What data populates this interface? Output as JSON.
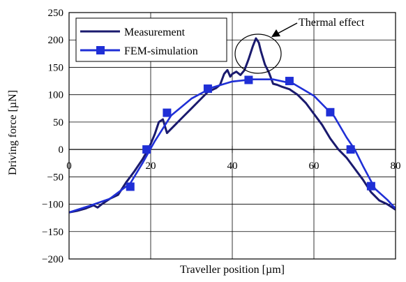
{
  "chart_data": {
    "type": "line",
    "title": "",
    "xlabel": "Traveller position [µm]",
    "ylabel": "Driving force [µN]",
    "xlim": [
      0,
      80
    ],
    "ylim": [
      -200,
      250
    ],
    "xticks": [
      0,
      20,
      40,
      60,
      80
    ],
    "xtick_labels": [
      "0",
      "20",
      "40",
      "60",
      "80"
    ],
    "yticks": [
      250,
      200,
      150,
      100,
      50,
      0,
      -50,
      -100,
      -150,
      -200
    ],
    "ytick_labels": [
      "250",
      "200",
      "150",
      "100",
      "50",
      "0",
      "−50",
      "−100",
      "−150",
      "−200"
    ],
    "grid": true,
    "legend_position": "top-left",
    "series": [
      {
        "name": "Measurement",
        "color": "#1a1a6e",
        "marker": "none",
        "x": [
          0,
          2,
          4,
          6,
          7,
          8,
          9,
          10,
          12,
          14,
          16,
          18,
          19,
          20,
          21,
          22,
          23,
          24,
          26,
          28,
          30,
          32,
          34,
          36,
          37,
          38,
          38.8,
          39.5,
          40,
          41,
          42,
          43,
          44,
          45,
          45.8,
          46.5,
          47,
          48,
          49,
          50,
          51,
          52,
          54,
          56,
          58,
          60,
          62,
          64,
          66,
          68,
          70,
          72,
          74,
          76,
          78,
          80
        ],
        "y": [
          -115,
          -112,
          -108,
          -102,
          -106,
          -100,
          -95,
          -90,
          -83,
          -60,
          -40,
          -18,
          -5,
          10,
          28,
          50,
          55,
          30,
          45,
          60,
          75,
          90,
          105,
          112,
          118,
          138,
          145,
          133,
          138,
          142,
          136,
          145,
          165,
          188,
          203,
          195,
          180,
          155,
          140,
          120,
          118,
          115,
          110,
          100,
          85,
          65,
          45,
          20,
          0,
          -15,
          -35,
          -55,
          -78,
          -93,
          -100,
          -110
        ]
      },
      {
        "name": "FEM-simulation",
        "color": "#1f2fd6",
        "marker": "square",
        "x": [
          0,
          5,
          10,
          15,
          18,
          21,
          25,
          30,
          35,
          40,
          45,
          50,
          55,
          60,
          65,
          68,
          70,
          72,
          75,
          78,
          80
        ],
        "y": [
          -115,
          -103,
          -90,
          -62,
          -25,
          15,
          62,
          93,
          113,
          124,
          128,
          128,
          120,
          98,
          60,
          22,
          0,
          -30,
          -72,
          -92,
          -108
        ]
      }
    ],
    "markers": [
      {
        "series": "FEM-simulation",
        "x": 15,
        "y": -68
      },
      {
        "series": "FEM-simulation",
        "x": 19,
        "y": 0
      },
      {
        "series": "FEM-simulation",
        "x": 24,
        "y": 67
      },
      {
        "series": "FEM-simulation",
        "x": 34,
        "y": 111
      },
      {
        "series": "FEM-simulation",
        "x": 44,
        "y": 127
      },
      {
        "series": "FEM-simulation",
        "x": 54,
        "y": 125
      },
      {
        "series": "FEM-simulation",
        "x": 64,
        "y": 68
      },
      {
        "series": "FEM-simulation",
        "x": 69,
        "y": 0
      },
      {
        "series": "FEM-simulation",
        "x": 74,
        "y": -67
      }
    ],
    "annotations": [
      {
        "text": "Thermal effect",
        "x": 46,
        "y": 200
      }
    ]
  }
}
